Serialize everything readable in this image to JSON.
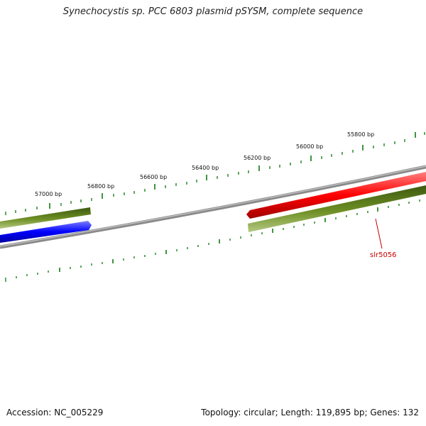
{
  "title": "Synechocystis sp. PCC 6803 plasmid pSYSM, complete sequence",
  "footer": {
    "accession": "Accession: NC_005229",
    "summary": "Topology: circular; Length: 119,895 bp; Genes: 132"
  },
  "ruler": {
    "tick_labels": [
      "57000 bp",
      "56800 bp",
      "56600 bp",
      "56400 bp",
      "56200 bp",
      "56000 bp",
      "55800 bp"
    ]
  },
  "genes": [
    {
      "label": "slr5056",
      "strand": "lower",
      "color": "#5f7f1f"
    }
  ],
  "colors": {
    "backbone": "#888888",
    "forward_gene": "#ff0000",
    "reverse_gene": "#0000ff",
    "other_gene": "#5f7f1f",
    "tick": "#2a8a2a",
    "label": "#cc0000"
  }
}
